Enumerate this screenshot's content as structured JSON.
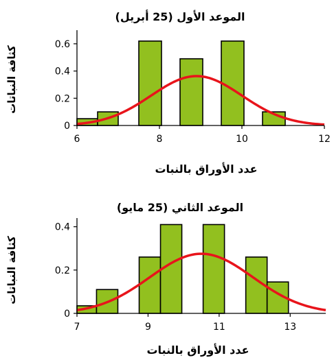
{
  "chart_data": [
    {
      "type": "bar",
      "title": "الموعد الأول (25 أبريل)",
      "xlabel": "عدد الأوراق بالنبات",
      "ylabel": "كثافة النباتات",
      "xlim": [
        6,
        12
      ],
      "ylim": [
        0,
        0.7
      ],
      "xticks": [
        "6",
        "8",
        "10",
        "12"
      ],
      "yticks": [
        "0",
        "0.2",
        "0.4",
        "0.6"
      ],
      "bins": [
        {
          "x0": 6.0,
          "x1": 6.5,
          "density": 0.05
        },
        {
          "x0": 6.5,
          "x1": 7.0,
          "density": 0.1
        },
        {
          "x0": 7.0,
          "x1": 7.5,
          "density": 0.0
        },
        {
          "x0": 7.5,
          "x1": 8.05,
          "density": 0.62
        },
        {
          "x0": 8.05,
          "x1": 8.5,
          "density": 0.0
        },
        {
          "x0": 8.5,
          "x1": 9.05,
          "density": 0.49
        },
        {
          "x0": 9.05,
          "x1": 9.5,
          "density": 0.0
        },
        {
          "x0": 9.5,
          "x1": 10.05,
          "density": 0.62
        },
        {
          "x0": 10.05,
          "x1": 10.5,
          "density": 0.0
        },
        {
          "x0": 10.5,
          "x1": 11.05,
          "density": 0.1
        }
      ],
      "normal_curve": {
        "mean": 8.9,
        "sd": 1.1
      },
      "bar_color": "#92C01F",
      "curve_color": "#E8141B"
    },
    {
      "type": "bar",
      "title": "الموعد الثاني (25 مايو)",
      "xlabel": "عدد الأوراق بالنبات",
      "ylabel": "كثافة النباتات",
      "xlim": [
        7,
        14
      ],
      "ylim": [
        0,
        0.44
      ],
      "xticks": [
        "7",
        "9",
        "11",
        "13"
      ],
      "yticks": [
        "0",
        "0.2",
        "0.4"
      ],
      "bins": [
        {
          "x0": 7.0,
          "x1": 7.55,
          "density": 0.035
        },
        {
          "x0": 7.55,
          "x1": 8.15,
          "density": 0.11
        },
        {
          "x0": 8.15,
          "x1": 8.75,
          "density": 0.0
        },
        {
          "x0": 8.75,
          "x1": 9.35,
          "density": 0.26
        },
        {
          "x0": 9.35,
          "x1": 9.95,
          "density": 0.41
        },
        {
          "x0": 9.95,
          "x1": 10.55,
          "density": 0.0
        },
        {
          "x0": 10.55,
          "x1": 11.15,
          "density": 0.41
        },
        {
          "x0": 11.15,
          "x1": 11.75,
          "density": 0.0
        },
        {
          "x0": 11.75,
          "x1": 12.35,
          "density": 0.26
        },
        {
          "x0": 12.35,
          "x1": 12.95,
          "density": 0.145
        }
      ],
      "normal_curve": {
        "mean": 10.5,
        "sd": 1.45
      },
      "bar_color": "#92C01F",
      "curve_color": "#E8141B"
    }
  ]
}
